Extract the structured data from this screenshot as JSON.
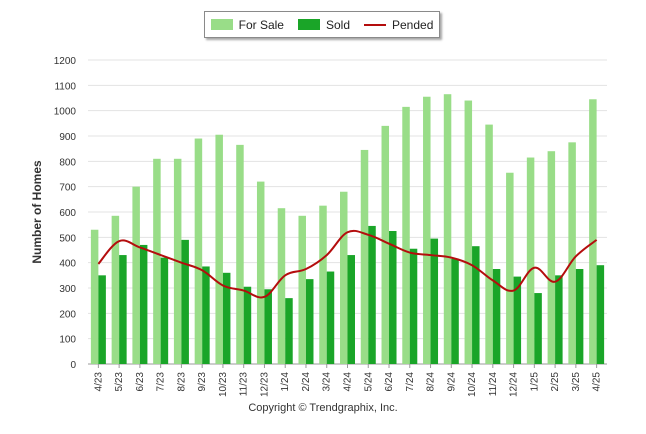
{
  "chart_data": {
    "type": "bar",
    "ylabel": "Number of Homes",
    "xlabel": "",
    "title": "",
    "ylim": [
      0,
      1200
    ],
    "yticks": [
      0,
      100,
      200,
      300,
      400,
      500,
      600,
      700,
      800,
      900,
      1000,
      1100,
      1200
    ],
    "categories": [
      "4/23",
      "5/23",
      "6/23",
      "7/23",
      "8/23",
      "9/23",
      "10/23",
      "11/23",
      "12/23",
      "1/24",
      "2/24",
      "3/24",
      "4/24",
      "5/24",
      "6/24",
      "7/24",
      "8/24",
      "9/24",
      "10/24",
      "11/24",
      "12/24",
      "1/25",
      "2/25",
      "3/25",
      "4/25"
    ],
    "series": [
      {
        "name": "For Sale",
        "type": "bar",
        "color": "#99dd88",
        "values": [
          530,
          585,
          700,
          810,
          810,
          890,
          905,
          865,
          720,
          615,
          585,
          625,
          680,
          845,
          940,
          1015,
          1055,
          1065,
          1040,
          945,
          755,
          815,
          840,
          875,
          1045
        ]
      },
      {
        "name": "Sold",
        "type": "bar",
        "color": "#1aa528",
        "values": [
          350,
          430,
          470,
          420,
          490,
          385,
          360,
          305,
          295,
          260,
          335,
          365,
          430,
          545,
          525,
          455,
          495,
          415,
          465,
          375,
          345,
          280,
          350,
          375,
          390
        ]
      },
      {
        "name": "Pended",
        "type": "line",
        "color": "#b40d0d",
        "values": [
          395,
          485,
          460,
          430,
          400,
          370,
          310,
          290,
          265,
          350,
          375,
          430,
          520,
          510,
          475,
          440,
          430,
          420,
          390,
          330,
          290,
          380,
          325,
          425,
          490
        ]
      }
    ],
    "legend_position": "top-center",
    "grid": true
  },
  "copyright": "Copyright © Trendgraphix, Inc."
}
